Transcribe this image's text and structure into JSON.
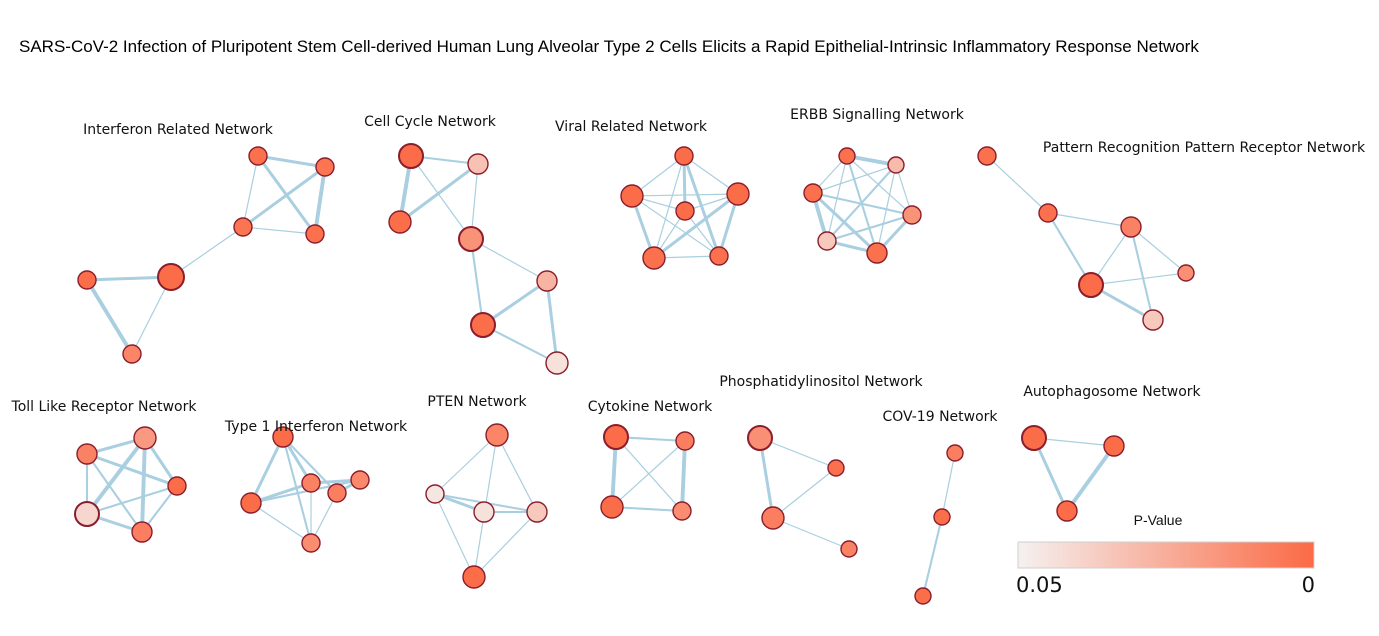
{
  "title": "SARS-CoV-2 Infection of Pluripotent Stem Cell-derived Human Lung Alveolar Type 2 Cells Elicits a Rapid Epithelial-Intrinsic Inflammatory Response Network",
  "legend": {
    "title": "P-Value",
    "min_label": "0.05",
    "max_label": "0",
    "color_low": "#f5f1f0",
    "color_high": "#fb6a45"
  },
  "colors": {
    "edge": "#a9cfe0",
    "node_border": "#8b1d2c"
  },
  "networks": [
    {
      "name": "Interferon Related Network"
    },
    {
      "name": "Cell Cycle Network"
    },
    {
      "name": "Viral Related Network"
    },
    {
      "name": "ERBB Signalling Network"
    },
    {
      "name": "Pattern Recognition Pattern Receptor Network"
    },
    {
      "name": "Toll Like Receptor Network"
    },
    {
      "name": "Type 1 Interferon Network"
    },
    {
      "name": "PTEN Network"
    },
    {
      "name": "Cytokine Network"
    },
    {
      "name": "Phosphatidylinositol Network"
    },
    {
      "name": "COV-19 Network"
    },
    {
      "name": "Autophagosome Network"
    }
  ]
}
